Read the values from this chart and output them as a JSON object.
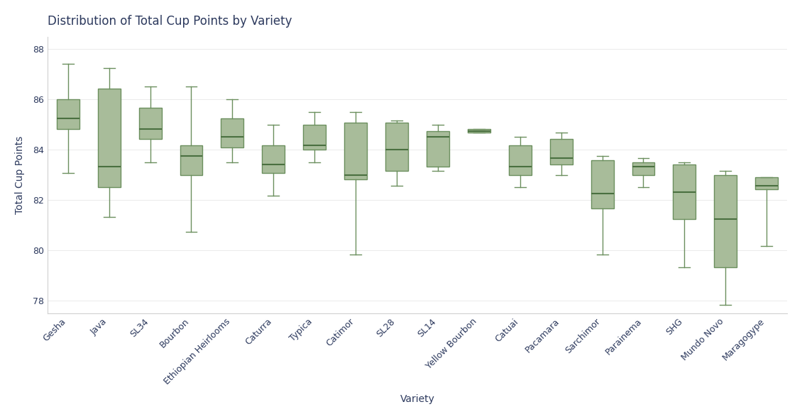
{
  "title": "Distribution of Total Cup Points by Variety",
  "xlabel": "Variety",
  "ylabel": "Total Cup Points",
  "ylim": [
    77.5,
    88.5
  ],
  "yticks": [
    78,
    80,
    82,
    84,
    86,
    88
  ],
  "box_facecolor": "#a8bc9a",
  "box_edgecolor": "#6b8f5e",
  "median_color": "#4a7040",
  "whisker_color": "#6b8f5e",
  "background_color": "#ffffff",
  "title_color": "#2d3a5e",
  "label_color": "#2d3a5e",
  "tick_color": "#2d3a5e",
  "varieties": [
    "Gesha",
    "Java",
    "SL34",
    "Bourbon",
    "Ethiopian Heirlooms",
    "Caturra",
    "Typica",
    "Catimor",
    "SL28",
    "SL14",
    "Yellow Bourbon",
    "Catuai",
    "Pacamara",
    "Sarchimor",
    "Parainema",
    "SHG",
    "Mundo Novo",
    "Maragogype"
  ],
  "boxes": [
    {
      "whislo": 83.08,
      "q1": 84.83,
      "med": 85.25,
      "q3": 86.0,
      "whishi": 87.42
    },
    {
      "whislo": 81.33,
      "q1": 82.5,
      "med": 83.33,
      "q3": 86.42,
      "whishi": 87.25
    },
    {
      "whislo": 83.5,
      "q1": 84.42,
      "med": 84.83,
      "q3": 85.67,
      "whishi": 86.5
    },
    {
      "whislo": 80.75,
      "q1": 83.0,
      "med": 83.75,
      "q3": 84.17,
      "whishi": 86.5
    },
    {
      "whislo": 83.5,
      "q1": 84.08,
      "med": 84.5,
      "q3": 85.25,
      "whishi": 86.0
    },
    {
      "whislo": 82.17,
      "q1": 83.08,
      "med": 83.42,
      "q3": 84.17,
      "whishi": 85.0
    },
    {
      "whislo": 83.5,
      "q1": 84.0,
      "med": 84.17,
      "q3": 85.0,
      "whishi": 85.5
    },
    {
      "whislo": 79.83,
      "q1": 82.83,
      "med": 83.0,
      "q3": 85.08,
      "whishi": 85.5
    },
    {
      "whislo": 82.58,
      "q1": 83.17,
      "med": 84.0,
      "q3": 85.08,
      "whishi": 85.17
    },
    {
      "whislo": 83.17,
      "q1": 83.33,
      "med": 84.5,
      "q3": 84.75,
      "whishi": 85.0
    },
    {
      "whislo": 84.67,
      "q1": 84.67,
      "med": 84.75,
      "q3": 84.83,
      "whishi": 84.83
    },
    {
      "whislo": 82.5,
      "q1": 83.0,
      "med": 83.33,
      "q3": 84.17,
      "whishi": 84.5
    },
    {
      "whislo": 83.0,
      "q1": 83.42,
      "med": 83.67,
      "q3": 84.42,
      "whishi": 84.67
    },
    {
      "whislo": 79.83,
      "q1": 81.67,
      "med": 82.25,
      "q3": 83.58,
      "whishi": 83.75
    },
    {
      "whislo": 82.5,
      "q1": 83.0,
      "med": 83.33,
      "q3": 83.5,
      "whishi": 83.67
    },
    {
      "whislo": 79.33,
      "q1": 81.25,
      "med": 82.33,
      "q3": 83.42,
      "whishi": 83.5
    },
    {
      "whislo": 77.83,
      "q1": 79.33,
      "med": 81.25,
      "q3": 83.0,
      "whishi": 83.17
    },
    {
      "whislo": 80.17,
      "q1": 82.42,
      "med": 82.58,
      "q3": 82.92,
      "whishi": 82.92
    }
  ]
}
